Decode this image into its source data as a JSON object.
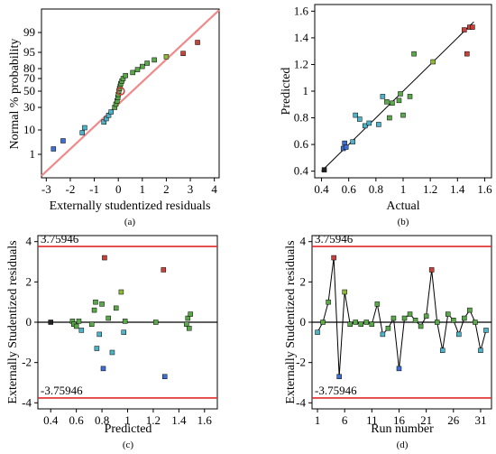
{
  "chart_data": [
    {
      "type": "scatter",
      "panel": "(a)",
      "xlabel": "Externally studentized residuals",
      "ylabel": "Normal % probability",
      "xlim": [
        -3.2,
        4.2
      ],
      "xticks": [
        "-3",
        "-2",
        "-1",
        "0",
        "1",
        "2",
        "3",
        "4"
      ],
      "yticks": [
        "1",
        "10",
        "30",
        "50",
        "70",
        "80",
        "95",
        "99"
      ],
      "ytick_values": [
        1,
        10,
        30,
        50,
        70,
        80,
        95,
        99
      ],
      "line": [
        [
          -2.4,
          0.5
        ],
        [
          3.4,
          99.5
        ]
      ],
      "points": [
        [
          -2.7,
          3
        ],
        [
          -2.3,
          6
        ],
        [
          -1.5,
          9
        ],
        [
          -1.4,
          12
        ],
        [
          -0.6,
          17
        ],
        [
          -0.5,
          20
        ],
        [
          -0.4,
          23
        ],
        [
          -0.3,
          26
        ],
        [
          -0.15,
          30
        ],
        [
          -0.1,
          34
        ],
        [
          -0.05,
          38
        ],
        [
          -0.02,
          42
        ],
        [
          0.0,
          46
        ],
        [
          0.02,
          50
        ],
        [
          0.05,
          54
        ],
        [
          0.08,
          58
        ],
        [
          0.1,
          62
        ],
        [
          0.15,
          66
        ],
        [
          0.2,
          70
        ],
        [
          0.3,
          73
        ],
        [
          0.6,
          76
        ],
        [
          0.8,
          79
        ],
        [
          1.0,
          82
        ],
        [
          1.2,
          85
        ],
        [
          1.5,
          88
        ],
        [
          2.0,
          91
        ],
        [
          2.7,
          94
        ],
        [
          3.3,
          97
        ]
      ],
      "highlight_point": [
        0.1,
        50
      ]
    },
    {
      "type": "scatter",
      "panel": "(b)",
      "xlabel": "Actual",
      "ylabel": "Predicted",
      "xlim": [
        0.35,
        1.65
      ],
      "ylim": [
        0.35,
        1.65
      ],
      "xticks": [
        "0.4",
        "0.6",
        "0.8",
        "1",
        "1.2",
        "1.4",
        "1.6"
      ],
      "yticks": [
        "0.4",
        "0.6",
        "0.8",
        "1",
        "1.2",
        "1.4",
        "1.6"
      ],
      "line": [
        [
          0.4,
          0.4
        ],
        [
          1.52,
          1.52
        ]
      ],
      "points": [
        [
          0.42,
          0.41
        ],
        [
          0.56,
          0.57
        ],
        [
          0.57,
          0.61
        ],
        [
          0.58,
          0.58
        ],
        [
          0.63,
          0.62
        ],
        [
          0.65,
          0.82
        ],
        [
          0.68,
          0.79
        ],
        [
          0.72,
          0.74
        ],
        [
          0.75,
          0.76
        ],
        [
          0.82,
          0.75
        ],
        [
          0.85,
          0.96
        ],
        [
          0.88,
          0.92
        ],
        [
          0.9,
          0.8
        ],
        [
          0.92,
          0.91
        ],
        [
          0.97,
          0.93
        ],
        [
          0.98,
          0.98
        ],
        [
          1.0,
          0.82
        ],
        [
          1.05,
          0.96
        ],
        [
          1.08,
          1.28
        ],
        [
          1.22,
          1.22
        ],
        [
          1.45,
          1.46
        ],
        [
          1.47,
          1.28
        ],
        [
          1.49,
          1.48
        ],
        [
          1.51,
          1.48
        ]
      ]
    },
    {
      "type": "scatter",
      "panel": "(c)",
      "xlabel": "Predicted",
      "ylabel": "Externally Studentized residuals",
      "xlim": [
        0.3,
        1.7
      ],
      "ylim": [
        -4.3,
        4.3
      ],
      "xticks": [
        "0.4",
        "0.6",
        "0.8",
        "1",
        "1.2",
        "1.4",
        "1.6"
      ],
      "yticks": [
        "-4",
        "-2",
        "0",
        "2",
        "4"
      ],
      "limit_labels": [
        "3.75946",
        "-3.75946"
      ],
      "limits": [
        3.75946,
        -3.75946
      ],
      "points": [
        [
          0.4,
          0.0
        ],
        [
          0.57,
          0.05
        ],
        [
          0.58,
          -0.1
        ],
        [
          0.6,
          -0.2
        ],
        [
          0.62,
          0.05
        ],
        [
          0.64,
          -0.4
        ],
        [
          0.72,
          -0.1
        ],
        [
          0.74,
          0.6
        ],
        [
          0.75,
          1.0
        ],
        [
          0.76,
          -1.3
        ],
        [
          0.78,
          -0.6
        ],
        [
          0.8,
          0.9
        ],
        [
          0.81,
          -2.3
        ],
        [
          0.82,
          3.2
        ],
        [
          0.85,
          0.2
        ],
        [
          0.88,
          -1.5
        ],
        [
          0.91,
          0.7
        ],
        [
          0.95,
          1.5
        ],
        [
          0.97,
          -0.5
        ],
        [
          0.98,
          0.05
        ],
        [
          1.22,
          0.0
        ],
        [
          1.28,
          2.6
        ],
        [
          1.29,
          -2.7
        ],
        [
          1.46,
          -0.1
        ],
        [
          1.47,
          0.2
        ],
        [
          1.48,
          -0.3
        ],
        [
          1.49,
          0.4
        ]
      ]
    },
    {
      "type": "line",
      "panel": "(d)",
      "xlabel": "Run number",
      "ylabel": "Externally Studentized residuals",
      "xlim": [
        0,
        33
      ],
      "ylim": [
        -4.3,
        4.3
      ],
      "xticks": [
        "1",
        "6",
        "11",
        "16",
        "21",
        "26",
        "31"
      ],
      "xtick_values": [
        1,
        6,
        11,
        16,
        21,
        26,
        31
      ],
      "yticks": [
        "-4",
        "-2",
        "0",
        "2",
        "4"
      ],
      "limit_labels": [
        "3.75946",
        "-3.75946"
      ],
      "limits": [
        3.75946,
        -3.75946
      ],
      "x": [
        1,
        2,
        3,
        4,
        5,
        6,
        7,
        8,
        9,
        10,
        11,
        12,
        13,
        14,
        15,
        16,
        17,
        18,
        19,
        20,
        21,
        22,
        23,
        24,
        25,
        26,
        27,
        28,
        29,
        30,
        31,
        32
      ],
      "values": [
        -0.5,
        0.0,
        1.0,
        3.2,
        -2.7,
        1.5,
        -0.1,
        0.0,
        -0.1,
        0.0,
        -0.1,
        0.9,
        -0.6,
        -0.3,
        0.2,
        -2.3,
        0.2,
        0.4,
        0.1,
        -0.2,
        0.3,
        2.6,
        0.0,
        -1.4,
        0.4,
        0.1,
        -0.6,
        0.2,
        0.6,
        0.0,
        -1.4,
        -0.4
      ]
    }
  ],
  "captions": [
    "(a)",
    "(b)",
    "(c)",
    "(d)"
  ]
}
